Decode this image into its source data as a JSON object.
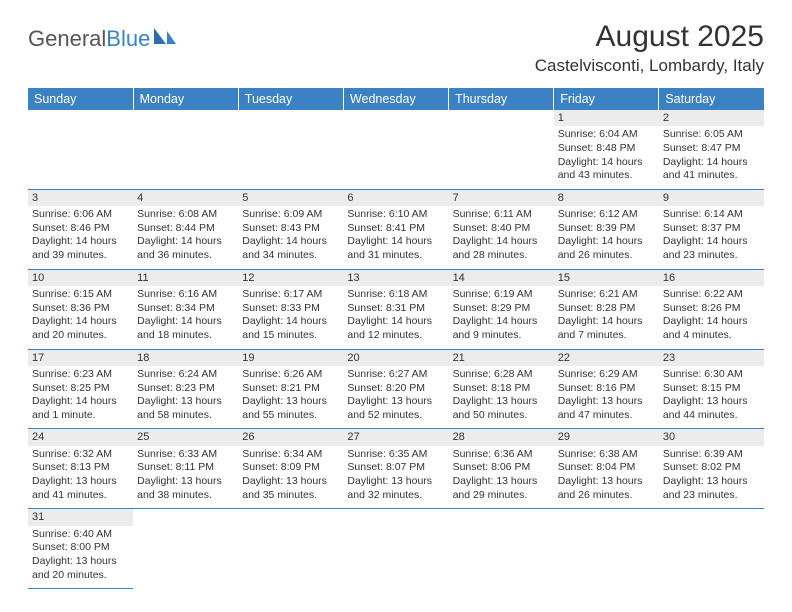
{
  "logo": {
    "text1": "General",
    "text2": "Blue"
  },
  "title": "August 2025",
  "location": "Castelvisconti, Lombardy, Italy",
  "colors": {
    "header_bg": "#3b82c4",
    "header_fg": "#ffffff",
    "daynum_bg": "#ececec",
    "body_text": "#333333",
    "rule": "#3b82c4"
  },
  "day_headers": [
    "Sunday",
    "Monday",
    "Tuesday",
    "Wednesday",
    "Thursday",
    "Friday",
    "Saturday"
  ],
  "weeks": [
    [
      null,
      null,
      null,
      null,
      null,
      {
        "n": "1",
        "sunrise": "Sunrise: 6:04 AM",
        "sunset": "Sunset: 8:48 PM",
        "day1": "Daylight: 14 hours",
        "day2": "and 43 minutes."
      },
      {
        "n": "2",
        "sunrise": "Sunrise: 6:05 AM",
        "sunset": "Sunset: 8:47 PM",
        "day1": "Daylight: 14 hours",
        "day2": "and 41 minutes."
      }
    ],
    [
      {
        "n": "3",
        "sunrise": "Sunrise: 6:06 AM",
        "sunset": "Sunset: 8:46 PM",
        "day1": "Daylight: 14 hours",
        "day2": "and 39 minutes."
      },
      {
        "n": "4",
        "sunrise": "Sunrise: 6:08 AM",
        "sunset": "Sunset: 8:44 PM",
        "day1": "Daylight: 14 hours",
        "day2": "and 36 minutes."
      },
      {
        "n": "5",
        "sunrise": "Sunrise: 6:09 AM",
        "sunset": "Sunset: 8:43 PM",
        "day1": "Daylight: 14 hours",
        "day2": "and 34 minutes."
      },
      {
        "n": "6",
        "sunrise": "Sunrise: 6:10 AM",
        "sunset": "Sunset: 8:41 PM",
        "day1": "Daylight: 14 hours",
        "day2": "and 31 minutes."
      },
      {
        "n": "7",
        "sunrise": "Sunrise: 6:11 AM",
        "sunset": "Sunset: 8:40 PM",
        "day1": "Daylight: 14 hours",
        "day2": "and 28 minutes."
      },
      {
        "n": "8",
        "sunrise": "Sunrise: 6:12 AM",
        "sunset": "Sunset: 8:39 PM",
        "day1": "Daylight: 14 hours",
        "day2": "and 26 minutes."
      },
      {
        "n": "9",
        "sunrise": "Sunrise: 6:14 AM",
        "sunset": "Sunset: 8:37 PM",
        "day1": "Daylight: 14 hours",
        "day2": "and 23 minutes."
      }
    ],
    [
      {
        "n": "10",
        "sunrise": "Sunrise: 6:15 AM",
        "sunset": "Sunset: 8:36 PM",
        "day1": "Daylight: 14 hours",
        "day2": "and 20 minutes."
      },
      {
        "n": "11",
        "sunrise": "Sunrise: 6:16 AM",
        "sunset": "Sunset: 8:34 PM",
        "day1": "Daylight: 14 hours",
        "day2": "and 18 minutes."
      },
      {
        "n": "12",
        "sunrise": "Sunrise: 6:17 AM",
        "sunset": "Sunset: 8:33 PM",
        "day1": "Daylight: 14 hours",
        "day2": "and 15 minutes."
      },
      {
        "n": "13",
        "sunrise": "Sunrise: 6:18 AM",
        "sunset": "Sunset: 8:31 PM",
        "day1": "Daylight: 14 hours",
        "day2": "and 12 minutes."
      },
      {
        "n": "14",
        "sunrise": "Sunrise: 6:19 AM",
        "sunset": "Sunset: 8:29 PM",
        "day1": "Daylight: 14 hours",
        "day2": "and 9 minutes."
      },
      {
        "n": "15",
        "sunrise": "Sunrise: 6:21 AM",
        "sunset": "Sunset: 8:28 PM",
        "day1": "Daylight: 14 hours",
        "day2": "and 7 minutes."
      },
      {
        "n": "16",
        "sunrise": "Sunrise: 6:22 AM",
        "sunset": "Sunset: 8:26 PM",
        "day1": "Daylight: 14 hours",
        "day2": "and 4 minutes."
      }
    ],
    [
      {
        "n": "17",
        "sunrise": "Sunrise: 6:23 AM",
        "sunset": "Sunset: 8:25 PM",
        "day1": "Daylight: 14 hours",
        "day2": "and 1 minute."
      },
      {
        "n": "18",
        "sunrise": "Sunrise: 6:24 AM",
        "sunset": "Sunset: 8:23 PM",
        "day1": "Daylight: 13 hours",
        "day2": "and 58 minutes."
      },
      {
        "n": "19",
        "sunrise": "Sunrise: 6:26 AM",
        "sunset": "Sunset: 8:21 PM",
        "day1": "Daylight: 13 hours",
        "day2": "and 55 minutes."
      },
      {
        "n": "20",
        "sunrise": "Sunrise: 6:27 AM",
        "sunset": "Sunset: 8:20 PM",
        "day1": "Daylight: 13 hours",
        "day2": "and 52 minutes."
      },
      {
        "n": "21",
        "sunrise": "Sunrise: 6:28 AM",
        "sunset": "Sunset: 8:18 PM",
        "day1": "Daylight: 13 hours",
        "day2": "and 50 minutes."
      },
      {
        "n": "22",
        "sunrise": "Sunrise: 6:29 AM",
        "sunset": "Sunset: 8:16 PM",
        "day1": "Daylight: 13 hours",
        "day2": "and 47 minutes."
      },
      {
        "n": "23",
        "sunrise": "Sunrise: 6:30 AM",
        "sunset": "Sunset: 8:15 PM",
        "day1": "Daylight: 13 hours",
        "day2": "and 44 minutes."
      }
    ],
    [
      {
        "n": "24",
        "sunrise": "Sunrise: 6:32 AM",
        "sunset": "Sunset: 8:13 PM",
        "day1": "Daylight: 13 hours",
        "day2": "and 41 minutes."
      },
      {
        "n": "25",
        "sunrise": "Sunrise: 6:33 AM",
        "sunset": "Sunset: 8:11 PM",
        "day1": "Daylight: 13 hours",
        "day2": "and 38 minutes."
      },
      {
        "n": "26",
        "sunrise": "Sunrise: 6:34 AM",
        "sunset": "Sunset: 8:09 PM",
        "day1": "Daylight: 13 hours",
        "day2": "and 35 minutes."
      },
      {
        "n": "27",
        "sunrise": "Sunrise: 6:35 AM",
        "sunset": "Sunset: 8:07 PM",
        "day1": "Daylight: 13 hours",
        "day2": "and 32 minutes."
      },
      {
        "n": "28",
        "sunrise": "Sunrise: 6:36 AM",
        "sunset": "Sunset: 8:06 PM",
        "day1": "Daylight: 13 hours",
        "day2": "and 29 minutes."
      },
      {
        "n": "29",
        "sunrise": "Sunrise: 6:38 AM",
        "sunset": "Sunset: 8:04 PM",
        "day1": "Daylight: 13 hours",
        "day2": "and 26 minutes."
      },
      {
        "n": "30",
        "sunrise": "Sunrise: 6:39 AM",
        "sunset": "Sunset: 8:02 PM",
        "day1": "Daylight: 13 hours",
        "day2": "and 23 minutes."
      }
    ],
    [
      {
        "n": "31",
        "sunrise": "Sunrise: 6:40 AM",
        "sunset": "Sunset: 8:00 PM",
        "day1": "Daylight: 13 hours",
        "day2": "and 20 minutes."
      },
      null,
      null,
      null,
      null,
      null,
      null
    ]
  ]
}
